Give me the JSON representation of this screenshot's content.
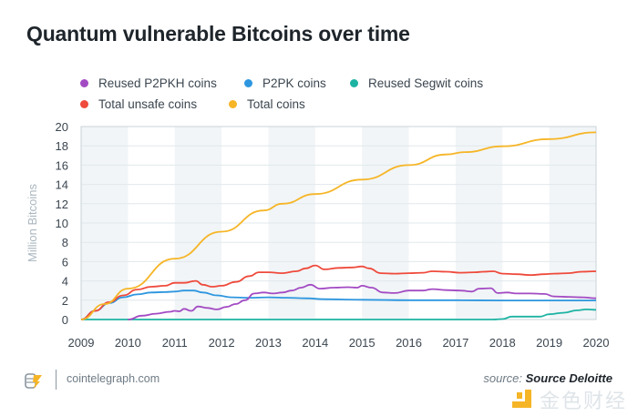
{
  "title": "Quantum vulnerable Bitcoins over time",
  "footer": {
    "site": "cointelegraph.com",
    "source_prefix": "source: ",
    "source_name": "Source Deloitte",
    "watermark": "金色财经"
  },
  "chart_data": {
    "type": "line",
    "title": "Quantum vulnerable Bitcoins over time",
    "xlabel": "",
    "ylabel": "Million Bitcoins",
    "xlim": [
      2009,
      2020
    ],
    "ylim": [
      0,
      20
    ],
    "x_ticks": [
      "2009",
      "2010",
      "2011",
      "2012",
      "2013",
      "2014",
      "2015",
      "2016",
      "2017",
      "2018",
      "2019",
      "2020"
    ],
    "y_ticks": [
      "0",
      "2",
      "4",
      "6",
      "8",
      "10",
      "12",
      "14",
      "16",
      "18",
      "20"
    ],
    "grid": true,
    "shaded_year_bands": [
      [
        2009,
        2010
      ],
      [
        2011,
        2012
      ],
      [
        2013,
        2014
      ],
      [
        2015,
        2016
      ],
      [
        2017,
        2018
      ],
      [
        2019,
        2020
      ]
    ],
    "legend_position": "top-left",
    "series": [
      {
        "name": "Reused P2PKH coins",
        "color": "#a34bc3",
        "x": [
          2010.0,
          2010.3,
          2010.6,
          2010.9,
          2011.0,
          2011.1,
          2011.2,
          2011.35,
          2011.5,
          2011.7,
          2011.9,
          2012.1,
          2012.3,
          2012.5,
          2012.7,
          2012.9,
          2013.1,
          2013.3,
          2013.5,
          2013.7,
          2013.9,
          2014.1,
          2014.4,
          2014.7,
          2014.9,
          2015.0,
          2015.2,
          2015.45,
          2015.7,
          2016.0,
          2016.3,
          2016.5,
          2016.8,
          2017.1,
          2017.35,
          2017.5,
          2017.75,
          2017.9,
          2018.1,
          2018.3,
          2018.6,
          2018.9,
          2019.1,
          2019.4,
          2019.7,
          2020.0
        ],
        "y": [
          0.0,
          0.4,
          0.6,
          0.8,
          0.9,
          0.85,
          1.1,
          0.9,
          1.35,
          1.2,
          1.05,
          1.3,
          1.6,
          2.0,
          2.7,
          2.8,
          2.7,
          2.8,
          3.0,
          3.3,
          3.6,
          3.2,
          3.3,
          3.35,
          3.3,
          3.5,
          3.3,
          2.8,
          2.75,
          3.0,
          3.0,
          3.15,
          3.05,
          3.0,
          2.9,
          3.2,
          3.25,
          2.75,
          2.8,
          2.7,
          2.7,
          2.65,
          2.4,
          2.35,
          2.3,
          2.2
        ]
      },
      {
        "name": "P2PK coins",
        "color": "#2d96df",
        "x": [
          2009.0,
          2009.3,
          2009.6,
          2009.9,
          2010.2,
          2010.5,
          2010.8,
          2011.0,
          2011.2,
          2011.4,
          2011.6,
          2011.9,
          2012.2,
          2012.6,
          2013.0,
          2013.4,
          2013.8,
          2014.2,
          2015.0,
          2016.0,
          2017.0,
          2018.0,
          2019.0,
          2020.0
        ],
        "y": [
          0.0,
          0.9,
          1.7,
          2.3,
          2.6,
          2.8,
          2.85,
          2.9,
          3.0,
          3.0,
          2.8,
          2.5,
          2.3,
          2.25,
          2.3,
          2.25,
          2.2,
          2.1,
          2.05,
          2.0,
          2.0,
          1.97,
          1.97,
          1.97
        ]
      },
      {
        "name": "Reused Segwit coins",
        "color": "#1db3a3",
        "x": [
          2009.0,
          2017.8,
          2018.0,
          2018.2,
          2018.5,
          2018.8,
          2019.0,
          2019.3,
          2019.6,
          2019.8,
          2020.0
        ],
        "y": [
          0.0,
          0.0,
          0.05,
          0.3,
          0.3,
          0.3,
          0.55,
          0.7,
          0.95,
          1.05,
          1.0
        ]
      },
      {
        "name": "Total unsafe coins",
        "color": "#ef4a3c",
        "x": [
          2009.0,
          2009.3,
          2009.6,
          2009.9,
          2010.2,
          2010.5,
          2010.8,
          2011.0,
          2011.2,
          2011.45,
          2011.6,
          2011.8,
          2012.0,
          2012.3,
          2012.6,
          2012.8,
          2013.0,
          2013.3,
          2013.6,
          2013.8,
          2014.0,
          2014.2,
          2014.5,
          2014.8,
          2015.0,
          2015.15,
          2015.4,
          2015.7,
          2016.0,
          2016.3,
          2016.5,
          2016.8,
          2017.1,
          2017.4,
          2017.6,
          2017.8,
          2018.0,
          2018.3,
          2018.6,
          2018.9,
          2019.1,
          2019.4,
          2019.7,
          2020.0
        ],
        "y": [
          0.0,
          0.9,
          1.8,
          2.5,
          3.1,
          3.4,
          3.5,
          3.8,
          3.8,
          4.0,
          3.6,
          3.4,
          3.5,
          3.9,
          4.5,
          4.9,
          4.9,
          4.8,
          5.0,
          5.3,
          5.6,
          5.2,
          5.35,
          5.4,
          5.5,
          5.3,
          4.8,
          4.75,
          4.8,
          4.85,
          5.0,
          4.95,
          4.85,
          4.9,
          4.95,
          5.0,
          4.75,
          4.7,
          4.6,
          4.7,
          4.75,
          4.8,
          4.95,
          5.0
        ]
      },
      {
        "name": "Total coins",
        "color": "#f6b526",
        "x": [
          2009.0,
          2009.5,
          2010.0,
          2011.0,
          2012.0,
          2012.9,
          2013.3,
          2014.0,
          2015.0,
          2016.0,
          2016.8,
          2017.2,
          2018.0,
          2019.0,
          2020.0
        ],
        "y": [
          0.0,
          1.6,
          3.2,
          6.3,
          9.1,
          11.3,
          12.0,
          13.0,
          14.5,
          16.0,
          17.1,
          17.35,
          17.95,
          18.7,
          19.4
        ]
      }
    ]
  }
}
